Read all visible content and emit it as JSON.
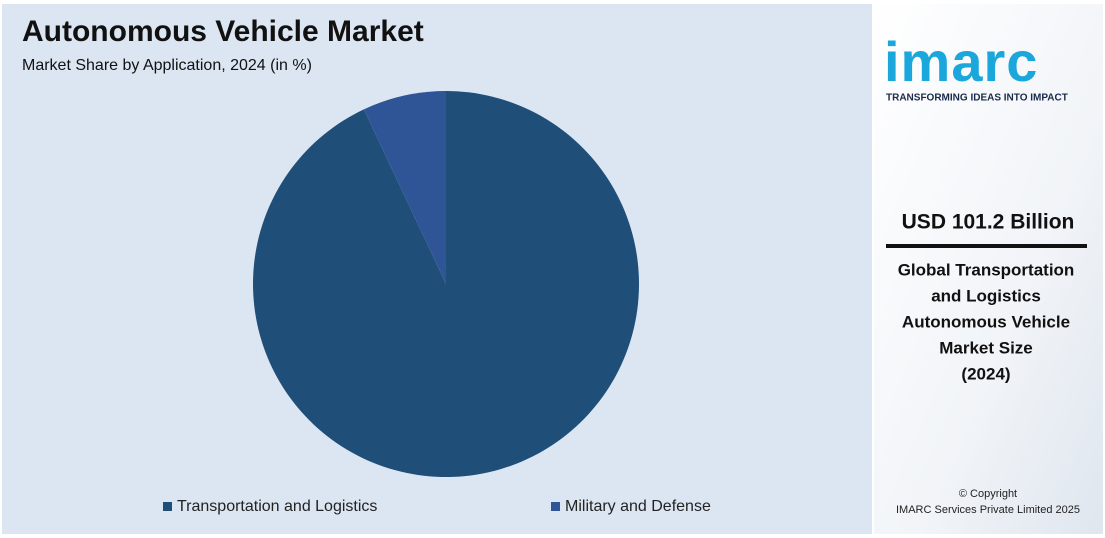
{
  "chart_data": {
    "type": "pie",
    "title": "Autonomous Vehicle Market",
    "subtitle": "Market Share by Application, 2024 (in %)",
    "categories": [
      "Transportation and Logistics",
      "Military and Defense"
    ],
    "values": [
      93,
      7
    ],
    "colors": [
      "#1f4e79",
      "#2f5597"
    ],
    "legend": "bottom"
  },
  "sidebar": {
    "logo": "imarc",
    "tagline": "TRANSFORMING IDEAS INTO IMPACT",
    "headline": "USD 101.2 Billion",
    "description": [
      "Global Transportation",
      "and Logistics",
      "Autonomous Vehicle",
      "Market Size",
      "(2024)"
    ],
    "copyright": "© Copyright",
    "company": "IMARC Services Private Limited 2025"
  }
}
